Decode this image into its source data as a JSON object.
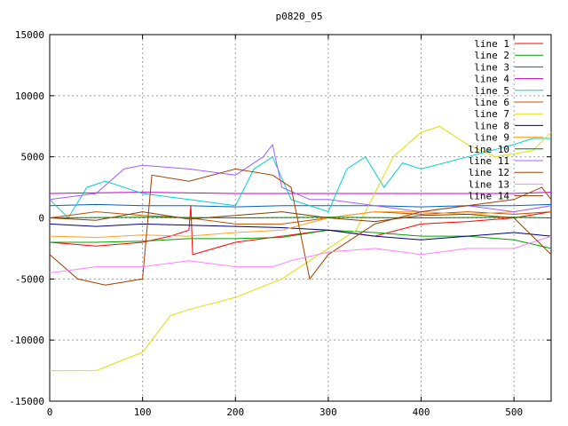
{
  "chart_data": {
    "type": "line",
    "title": "p0820_05",
    "xlabel": "",
    "ylabel": "",
    "xlim": [
      0,
      540
    ],
    "ylim": [
      -15000,
      15000
    ],
    "xticks": [
      0,
      100,
      200,
      300,
      400,
      500
    ],
    "yticks": [
      -15000,
      -10000,
      -5000,
      0,
      5000,
      10000,
      15000
    ],
    "grid": true,
    "legend_position": "top-right",
    "series": [
      {
        "name": "line 1",
        "color": "#ff0000",
        "x": [
          0,
          50,
          100,
          130,
          150,
          152,
          154,
          200,
          250,
          300,
          350,
          400,
          450,
          500,
          540
        ],
        "y": [
          -2000,
          -2300,
          -2000,
          -1500,
          -1000,
          1000,
          -3000,
          -2000,
          -1500,
          -1000,
          -1500,
          -500,
          -300,
          0,
          500
        ]
      },
      {
        "name": "line 2",
        "color": "#00a000",
        "x": [
          0,
          50,
          100,
          150,
          200,
          250,
          300,
          350,
          400,
          450,
          500,
          540
        ],
        "y": [
          -2000,
          -2000,
          -1900,
          -1700,
          -1700,
          -1600,
          -1000,
          -1200,
          -1500,
          -1500,
          -1800,
          -2500
        ]
      },
      {
        "name": "line 3",
        "color": "#0060c0",
        "x": [
          0,
          50,
          100,
          150,
          200,
          250,
          300,
          350,
          400,
          450,
          500,
          540
        ],
        "y": [
          1000,
          1100,
          1000,
          1000,
          900,
          1000,
          1000,
          1000,
          900,
          1000,
          1000,
          1100
        ]
      },
      {
        "name": "line 4",
        "color": "#c000c0",
        "x": [
          0,
          100,
          200,
          300,
          400,
          500,
          540
        ],
        "y": [
          2000,
          2100,
          2000,
          2000,
          2000,
          2000,
          2100
        ]
      },
      {
        "name": "line 5",
        "color": "#00d0d0",
        "x": [
          0,
          20,
          40,
          60,
          100,
          150,
          200,
          220,
          240,
          260,
          300,
          320,
          340,
          360,
          380,
          400,
          450,
          500,
          520,
          540
        ],
        "y": [
          1500,
          0,
          2500,
          3000,
          2000,
          1500,
          1000,
          4000,
          5000,
          1500,
          500,
          4000,
          5000,
          2500,
          4500,
          4000,
          5000,
          6000,
          6500,
          6500
        ]
      },
      {
        "name": "line 6",
        "color": "#c05000",
        "x": [
          0,
          50,
          100,
          150,
          200,
          250,
          300,
          350,
          400,
          450,
          500,
          540
        ],
        "y": [
          0,
          500,
          200,
          0,
          -500,
          -500,
          0,
          500,
          300,
          500,
          300,
          500
        ]
      },
      {
        "name": "line 7",
        "color": "#e0e000",
        "x": [
          0,
          50,
          100,
          130,
          150,
          200,
          250,
          290,
          310,
          330,
          350,
          370,
          400,
          420,
          450,
          480,
          520,
          540
        ],
        "y": [
          -12500,
          -12500,
          -11000,
          -8000,
          -7500,
          -6500,
          -5000,
          -3000,
          -2000,
          -1000,
          2000,
          5000,
          7000,
          7500,
          6000,
          5000,
          5500,
          7000
        ]
      },
      {
        "name": "line 8",
        "color": "#000080",
        "x": [
          0,
          50,
          100,
          150,
          200,
          250,
          300,
          350,
          400,
          450,
          500,
          540
        ],
        "y": [
          -500,
          -700,
          -500,
          -600,
          -700,
          -800,
          -1000,
          -1500,
          -1800,
          -1500,
          -1200,
          -1500
        ]
      },
      {
        "name": "line 9",
        "color": "#ffa020",
        "x": [
          0,
          50,
          100,
          150,
          200,
          250,
          300,
          350,
          400,
          450,
          500,
          540
        ],
        "y": [
          -1500,
          -1600,
          -1400,
          -1500,
          -1200,
          -1000,
          0,
          500,
          500,
          300,
          500,
          1000
        ]
      },
      {
        "name": "line 10",
        "color": "#008000",
        "x": [
          0,
          100,
          200,
          300,
          400,
          500,
          540
        ],
        "y": [
          0,
          50,
          0,
          50,
          0,
          50,
          0
        ]
      },
      {
        "name": "line 11",
        "color": "#a060ff",
        "x": [
          0,
          50,
          80,
          100,
          150,
          200,
          230,
          240,
          250,
          280,
          300,
          350,
          400,
          450,
          500,
          540
        ],
        "y": [
          1500,
          2000,
          4000,
          4300,
          4000,
          3500,
          5000,
          6000,
          2500,
          1500,
          1500,
          1000,
          500,
          1000,
          500,
          1000
        ]
      },
      {
        "name": "line 12",
        "color": "#a04000",
        "x": [
          0,
          30,
          60,
          100,
          110,
          150,
          200,
          240,
          260,
          280,
          300,
          350,
          400,
          450,
          500,
          530,
          540
        ],
        "y": [
          -3000,
          -5000,
          -5500,
          -5000,
          3500,
          3000,
          4000,
          3500,
          2500,
          -5000,
          -3000,
          -500,
          500,
          1000,
          1500,
          2500,
          1500
        ]
      },
      {
        "name": "line 13",
        "color": "#ff80ff",
        "x": [
          0,
          50,
          100,
          150,
          200,
          240,
          260,
          300,
          350,
          400,
          450,
          500,
          540
        ],
        "y": [
          -4500,
          -4000,
          -4000,
          -3500,
          -4000,
          -4000,
          -3500,
          -2800,
          -2500,
          -3000,
          -2500,
          -2500,
          -1500
        ]
      },
      {
        "name": "line 14",
        "color": "#804000",
        "x": [
          0,
          50,
          100,
          150,
          200,
          250,
          300,
          350,
          400,
          450,
          500,
          540
        ],
        "y": [
          0,
          -200,
          500,
          -100,
          200,
          500,
          0,
          -300,
          200,
          300,
          0,
          -3000
        ]
      }
    ]
  }
}
